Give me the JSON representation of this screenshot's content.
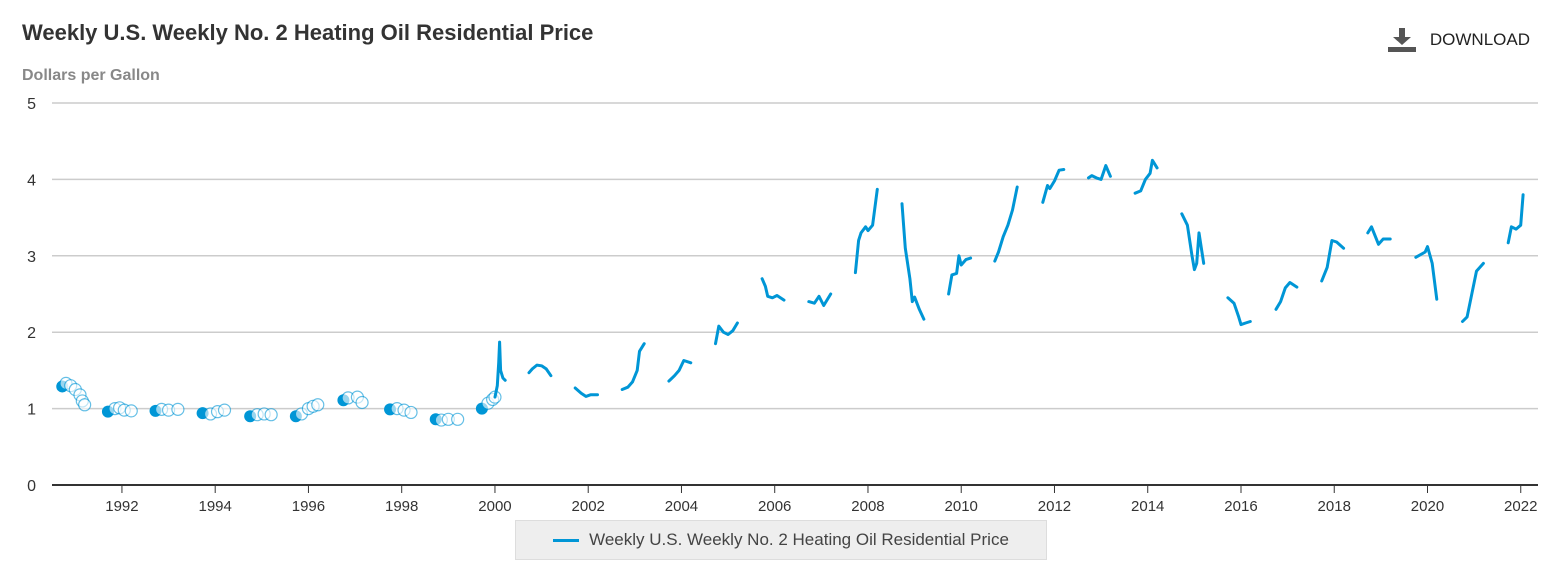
{
  "header": {
    "title": "Weekly U.S. Weekly No. 2 Heating Oil Residential Price",
    "download_label": "DOWNLOAD",
    "download_icon": "download-icon"
  },
  "colors": {
    "series": "#0096d6",
    "grid": "#cccccc",
    "axis": "#333333"
  },
  "chart_data": {
    "type": "line",
    "title": "Weekly U.S. Weekly No. 2 Heating Oil Residential Price",
    "ylabel": "Dollars per Gallon",
    "xlabel": "",
    "xlim": [
      1990.5,
      2022.37
    ],
    "ylim": [
      0,
      5
    ],
    "yticks": [
      "0",
      "1",
      "2",
      "3",
      "4",
      "5"
    ],
    "xticks": [
      "1992",
      "1994",
      "1996",
      "1998",
      "2000",
      "2002",
      "2004",
      "2006",
      "2008",
      "2010",
      "2012",
      "2014",
      "2016",
      "2018",
      "2020",
      "2022"
    ],
    "grid": true,
    "legend_position": "bottom",
    "series": [
      {
        "name": "Weekly U.S. Weekly No. 2 Heating Oil Residential Price",
        "segments": [
          {
            "markers": true,
            "points": [
              [
                1990.72,
                1.29
              ],
              [
                1990.8,
                1.33
              ],
              [
                1990.9,
                1.3
              ],
              [
                1991.0,
                1.25
              ],
              [
                1991.1,
                1.18
              ],
              [
                1991.15,
                1.1
              ],
              [
                1991.2,
                1.05
              ]
            ]
          },
          {
            "markers": true,
            "points": [
              [
                1991.7,
                0.96
              ],
              [
                1991.85,
                1.0
              ],
              [
                1991.95,
                1.01
              ],
              [
                1992.05,
                0.98
              ],
              [
                1992.2,
                0.97
              ]
            ]
          },
          {
            "markers": true,
            "points": [
              [
                1992.72,
                0.97
              ],
              [
                1992.85,
                0.99
              ],
              [
                1993.0,
                0.98
              ],
              [
                1993.2,
                0.99
              ]
            ]
          },
          {
            "markers": true,
            "points": [
              [
                1993.73,
                0.94
              ],
              [
                1993.9,
                0.93
              ],
              [
                1994.05,
                0.96
              ],
              [
                1994.2,
                0.98
              ]
            ]
          },
          {
            "markers": true,
            "points": [
              [
                1994.75,
                0.9
              ],
              [
                1994.9,
                0.92
              ],
              [
                1995.05,
                0.93
              ],
              [
                1995.2,
                0.92
              ]
            ]
          },
          {
            "markers": true,
            "points": [
              [
                1995.73,
                0.9
              ],
              [
                1995.85,
                0.93
              ],
              [
                1996.0,
                1.0
              ],
              [
                1996.1,
                1.03
              ],
              [
                1996.2,
                1.05
              ]
            ]
          },
          {
            "markers": true,
            "points": [
              [
                1996.75,
                1.11
              ],
              [
                1996.85,
                1.14
              ],
              [
                1997.05,
                1.15
              ],
              [
                1997.15,
                1.08
              ]
            ]
          },
          {
            "markers": true,
            "points": [
              [
                1997.75,
                0.99
              ],
              [
                1997.9,
                1.0
              ],
              [
                1998.05,
                0.98
              ],
              [
                1998.2,
                0.95
              ]
            ]
          },
          {
            "markers": true,
            "points": [
              [
                1998.73,
                0.86
              ],
              [
                1998.85,
                0.85
              ],
              [
                1999.0,
                0.86
              ],
              [
                1999.2,
                0.86
              ]
            ]
          },
          {
            "markers": true,
            "points": [
              [
                1999.72,
                1.0
              ],
              [
                1999.85,
                1.07
              ],
              [
                1999.95,
                1.12
              ],
              [
                2000.0,
                1.15
              ]
            ]
          },
          {
            "markers": false,
            "points": [
              [
                2000.0,
                1.15
              ],
              [
                2000.05,
                1.3
              ],
              [
                2000.08,
                1.6
              ],
              [
                2000.1,
                1.87
              ],
              [
                2000.12,
                1.5
              ],
              [
                2000.17,
                1.4
              ],
              [
                2000.22,
                1.37
              ]
            ]
          },
          {
            "markers": false,
            "points": [
              [
                2000.73,
                1.47
              ],
              [
                2000.8,
                1.52
              ],
              [
                2000.9,
                1.57
              ],
              [
                2001.0,
                1.56
              ],
              [
                2001.1,
                1.52
              ],
              [
                2001.2,
                1.43
              ]
            ]
          },
          {
            "markers": false,
            "points": [
              [
                2001.72,
                1.27
              ],
              [
                2001.85,
                1.2
              ],
              [
                2001.95,
                1.16
              ],
              [
                2002.05,
                1.18
              ],
              [
                2002.2,
                1.18
              ]
            ]
          },
          {
            "markers": false,
            "points": [
              [
                2002.73,
                1.25
              ],
              [
                2002.85,
                1.28
              ],
              [
                2002.95,
                1.35
              ],
              [
                2003.05,
                1.5
              ],
              [
                2003.1,
                1.75
              ],
              [
                2003.2,
                1.85
              ]
            ]
          },
          {
            "markers": false,
            "points": [
              [
                2003.73,
                1.36
              ],
              [
                2003.85,
                1.43
              ],
              [
                2003.95,
                1.5
              ],
              [
                2004.05,
                1.63
              ],
              [
                2004.2,
                1.6
              ]
            ]
          },
          {
            "markers": false,
            "points": [
              [
                2004.73,
                1.85
              ],
              [
                2004.8,
                2.08
              ],
              [
                2004.9,
                2.0
              ],
              [
                2005.0,
                1.97
              ],
              [
                2005.1,
                2.02
              ],
              [
                2005.2,
                2.12
              ]
            ]
          },
          {
            "markers": false,
            "points": [
              [
                2005.73,
                2.7
              ],
              [
                2005.8,
                2.6
              ],
              [
                2005.85,
                2.47
              ],
              [
                2005.95,
                2.45
              ],
              [
                2006.05,
                2.48
              ],
              [
                2006.2,
                2.42
              ]
            ]
          },
          {
            "markers": false,
            "points": [
              [
                2006.73,
                2.4
              ],
              [
                2006.85,
                2.38
              ],
              [
                2006.95,
                2.47
              ],
              [
                2007.05,
                2.35
              ],
              [
                2007.2,
                2.5
              ]
            ]
          },
          {
            "markers": false,
            "points": [
              [
                2007.73,
                2.78
              ],
              [
                2007.8,
                3.2
              ],
              [
                2007.85,
                3.3
              ],
              [
                2007.95,
                3.38
              ],
              [
                2008.0,
                3.33
              ],
              [
                2008.1,
                3.4
              ],
              [
                2008.2,
                3.87
              ]
            ]
          },
          {
            "markers": false,
            "points": [
              [
                2008.73,
                3.68
              ],
              [
                2008.8,
                3.1
              ],
              [
                2008.9,
                2.7
              ],
              [
                2008.95,
                2.4
              ],
              [
                2009.0,
                2.46
              ],
              [
                2009.1,
                2.3
              ],
              [
                2009.2,
                2.17
              ]
            ]
          },
          {
            "markers": false,
            "points": [
              [
                2009.73,
                2.5
              ],
              [
                2009.8,
                2.75
              ],
              [
                2009.9,
                2.77
              ],
              [
                2009.95,
                3.0
              ],
              [
                2010.0,
                2.88
              ],
              [
                2010.1,
                2.95
              ],
              [
                2010.2,
                2.97
              ]
            ]
          },
          {
            "markers": false,
            "points": [
              [
                2010.72,
                2.93
              ],
              [
                2010.8,
                3.05
              ],
              [
                2010.9,
                3.25
              ],
              [
                2011.0,
                3.4
              ],
              [
                2011.1,
                3.6
              ],
              [
                2011.2,
                3.9
              ]
            ]
          },
          {
            "markers": false,
            "points": [
              [
                2011.75,
                3.7
              ],
              [
                2011.85,
                3.92
              ],
              [
                2011.9,
                3.88
              ],
              [
                2012.0,
                3.98
              ],
              [
                2012.1,
                4.12
              ],
              [
                2012.2,
                4.13
              ]
            ]
          },
          {
            "markers": false,
            "points": [
              [
                2012.73,
                4.02
              ],
              [
                2012.8,
                4.05
              ],
              [
                2012.9,
                4.02
              ],
              [
                2013.0,
                4.0
              ],
              [
                2013.1,
                4.18
              ],
              [
                2013.2,
                4.04
              ]
            ]
          },
          {
            "markers": false,
            "points": [
              [
                2013.73,
                3.82
              ],
              [
                2013.85,
                3.85
              ],
              [
                2013.95,
                4.0
              ],
              [
                2014.05,
                4.08
              ],
              [
                2014.1,
                4.25
              ],
              [
                2014.2,
                4.15
              ]
            ]
          },
          {
            "markers": false,
            "points": [
              [
                2014.73,
                3.55
              ],
              [
                2014.85,
                3.4
              ],
              [
                2014.95,
                3.0
              ],
              [
                2015.0,
                2.82
              ],
              [
                2015.05,
                2.9
              ],
              [
                2015.1,
                3.3
              ],
              [
                2015.2,
                2.9
              ]
            ]
          },
          {
            "markers": false,
            "points": [
              [
                2015.72,
                2.45
              ],
              [
                2015.85,
                2.38
              ],
              [
                2015.95,
                2.2
              ],
              [
                2016.0,
                2.1
              ],
              [
                2016.1,
                2.12
              ],
              [
                2016.2,
                2.14
              ]
            ]
          },
          {
            "markers": false,
            "points": [
              [
                2016.75,
                2.3
              ],
              [
                2016.85,
                2.4
              ],
              [
                2016.95,
                2.58
              ],
              [
                2017.05,
                2.65
              ],
              [
                2017.2,
                2.59
              ]
            ]
          },
          {
            "markers": false,
            "points": [
              [
                2017.73,
                2.67
              ],
              [
                2017.85,
                2.85
              ],
              [
                2017.95,
                3.2
              ],
              [
                2018.05,
                3.18
              ],
              [
                2018.2,
                3.1
              ]
            ]
          },
          {
            "markers": false,
            "points": [
              [
                2018.72,
                3.3
              ],
              [
                2018.8,
                3.38
              ],
              [
                2018.95,
                3.15
              ],
              [
                2019.05,
                3.22
              ],
              [
                2019.2,
                3.22
              ]
            ]
          },
          {
            "markers": false,
            "points": [
              [
                2019.75,
                2.98
              ],
              [
                2019.95,
                3.05
              ],
              [
                2020.0,
                3.12
              ],
              [
                2020.1,
                2.9
              ],
              [
                2020.2,
                2.43
              ]
            ]
          },
          {
            "markers": false,
            "points": [
              [
                2020.75,
                2.14
              ],
              [
                2020.85,
                2.2
              ],
              [
                2020.95,
                2.5
              ],
              [
                2021.05,
                2.8
              ],
              [
                2021.2,
                2.9
              ]
            ]
          },
          {
            "markers": false,
            "points": [
              [
                2021.73,
                3.17
              ],
              [
                2021.8,
                3.38
              ],
              [
                2021.9,
                3.35
              ],
              [
                2022.0,
                3.4
              ],
              [
                2022.05,
                3.8
              ]
            ]
          }
        ]
      }
    ]
  }
}
